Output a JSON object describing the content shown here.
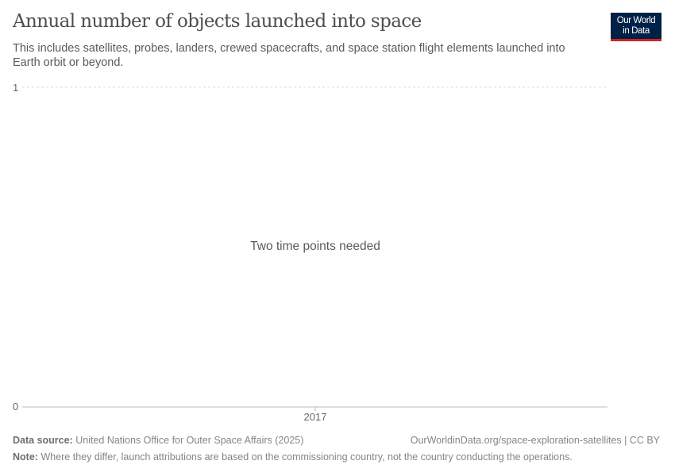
{
  "header": {
    "title": "Annual number of objects launched into space",
    "subtitle": "This includes satellites, probes, landers, crewed spacecrafts, and space station flight elements launched into Earth orbit or beyond.",
    "logo_line1": "Our World",
    "logo_line2": "in Data",
    "logo_colors": {
      "background": "#002147",
      "accent": "#ce261e"
    }
  },
  "chart_data": {
    "type": "line",
    "title": "Annual number of objects launched into space",
    "xlabel": "",
    "ylabel": "",
    "x_ticks": [
      "2017"
    ],
    "y_ticks": [
      "0",
      "1"
    ],
    "ylim": [
      0,
      1
    ],
    "grid": "horizontal dashed",
    "series": [],
    "message": "Two time points needed"
  },
  "footer": {
    "source_label": "Data source:",
    "source_text": "United Nations Office for Outer Space Affairs (2025)",
    "url_license": "OurWorldinData.org/space-exploration-satellites | CC BY",
    "note_label": "Note:",
    "note_text": "Where they differ, launch attributions are based on the commissioning country, not the country conducting the operations."
  }
}
